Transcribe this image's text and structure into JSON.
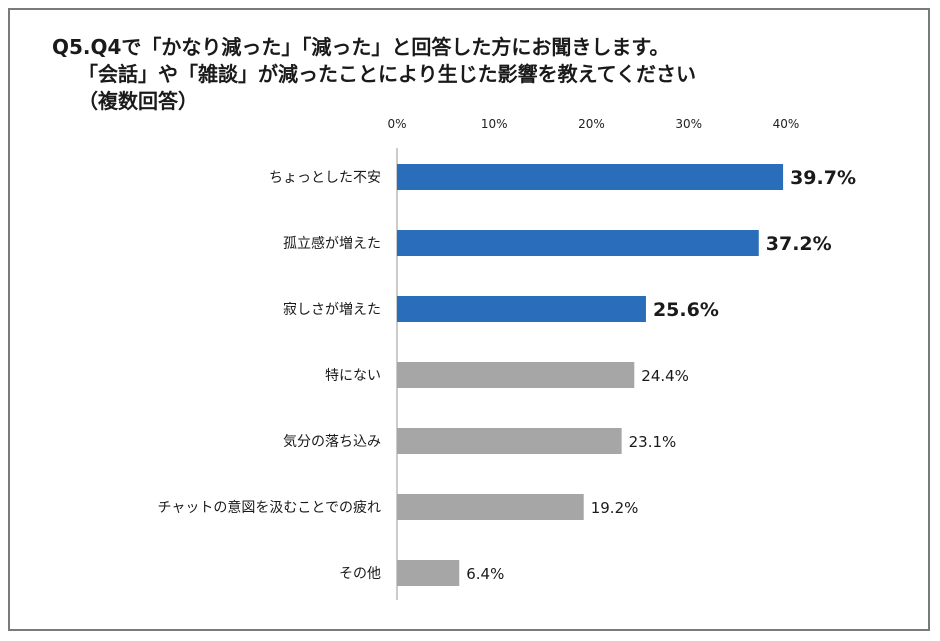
{
  "title": {
    "line1": "Q5.Q4で「かなり減った」「減った」と回答した方にお聞きします。",
    "line2": "「会話」や「雑談」が減ったことにより生じた影響を教えてください",
    "line3": "（複数回答）"
  },
  "chart_data": {
    "type": "bar",
    "orientation": "horizontal",
    "categories": [
      "ちょっとした不安",
      "孤立感が増えた",
      "寂しさが増えた",
      "特にない",
      "気分の落ち込み",
      "チャットの意図を汲むことでの疲れ",
      "その他"
    ],
    "values": [
      39.7,
      37.2,
      25.6,
      24.4,
      23.1,
      19.2,
      6.4
    ],
    "value_labels": [
      "39.7%",
      "37.2%",
      "25.6%",
      "24.4%",
      "23.1%",
      "19.2%",
      "6.4%"
    ],
    "highlighted": [
      true,
      true,
      true,
      false,
      false,
      false,
      false
    ],
    "xlim": [
      0,
      40
    ],
    "xticks": [
      0,
      10,
      20,
      30,
      40
    ],
    "xtick_labels": [
      "0%",
      "10%",
      "20%",
      "30%",
      "40%"
    ],
    "colors": {
      "highlight": "#2a6ebb",
      "normal": "#a6a6a6"
    },
    "grid": false,
    "legend": "none"
  }
}
